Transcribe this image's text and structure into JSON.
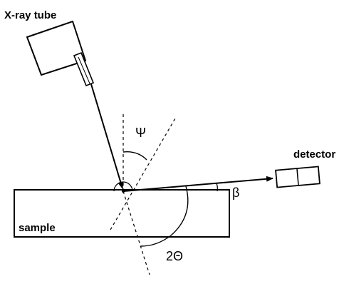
{
  "labels": {
    "xray_tube": "X-ray tube",
    "detector": "detector",
    "sample": "sample",
    "psi": "Ψ",
    "beta": "β",
    "two_theta": "2Θ"
  }
}
